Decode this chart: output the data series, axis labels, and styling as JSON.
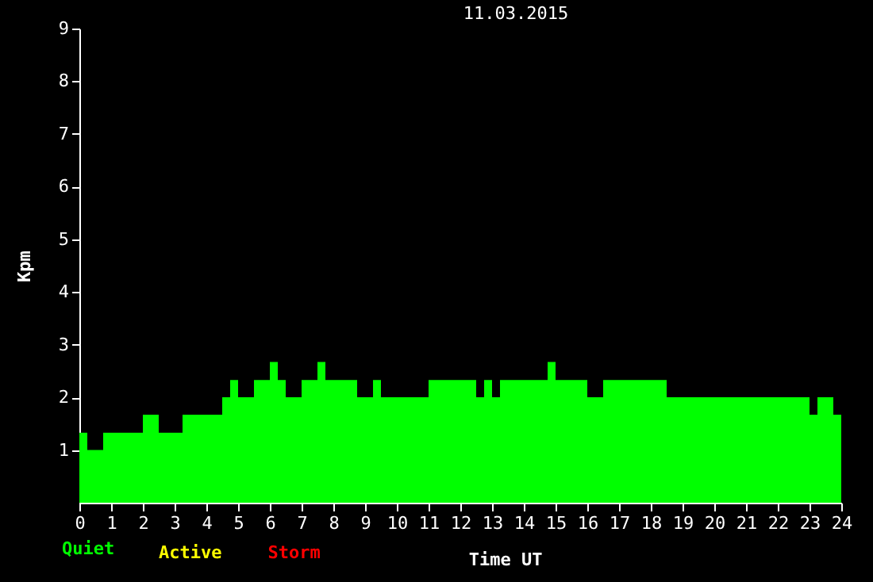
{
  "chart_data": {
    "type": "histogram",
    "title": "11.03.2015",
    "xlabel": "Time UT",
    "ylabel": "Kpm",
    "bins": [
      0,
      0.25,
      0.75,
      2,
      2.5,
      3.25,
      4.5,
      4.75,
      5,
      5.5,
      6,
      6.25,
      6.5,
      7,
      7.5,
      7.75,
      8.75,
      9.25,
      9.5,
      11,
      12.5,
      12.75,
      13,
      13.25,
      14.75,
      15,
      16,
      16.5,
      18.5,
      23,
      23.25,
      23.75,
      24
    ],
    "series": [
      {
        "name": "Quiet",
        "color": "#00ff00",
        "values": [
          1.33,
          1,
          1.33,
          1.67,
          1.33,
          1.67,
          2,
          2.33,
          2,
          2.33,
          2.67,
          2.33,
          2,
          2.33,
          2.67,
          2.33,
          2,
          2.33,
          2,
          2.33,
          2,
          2.33,
          2,
          2.33,
          2.67,
          2.33,
          2,
          2.33,
          2,
          1.67,
          2,
          1.67
        ]
      }
    ],
    "annotations": [
      "Active",
      "Storm"
    ],
    "xlim": [
      0,
      24
    ],
    "xticks": [
      0,
      1,
      2,
      3,
      4,
      5,
      6,
      7,
      8,
      9,
      10,
      11,
      12,
      13,
      14,
      15,
      16,
      17,
      18,
      19,
      20,
      21,
      22,
      23,
      24
    ],
    "ylim": [
      0,
      9
    ],
    "yticks": [
      1,
      2,
      3,
      4,
      5,
      6,
      7,
      8,
      9
    ],
    "legend": "bottom left"
  }
}
